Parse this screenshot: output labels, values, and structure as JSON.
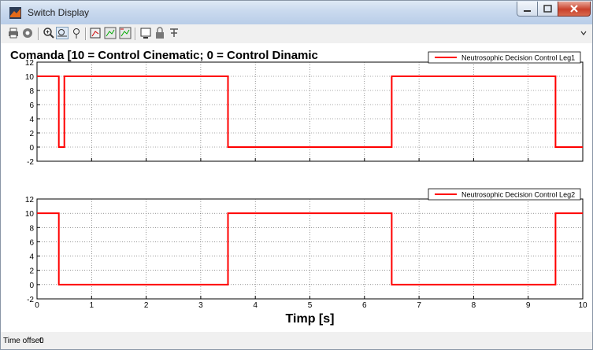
{
  "window": {
    "title": "Switch Display"
  },
  "toolbar": {
    "buttons": [
      "print-icon",
      "parameters-icon",
      "zoom-in-icon",
      "zoom-x-icon",
      "zoom-y-icon",
      "autoscale-icon",
      "save-axes-icon",
      "restore-axes-icon",
      "floating-scope-icon",
      "lock-icon",
      "signal-selection-icon"
    ]
  },
  "status": {
    "label": "Time offset:",
    "value": "0"
  },
  "chart_data": [
    {
      "type": "line",
      "title": "Comanda  [10 = Control Cinematic; 0 = Control Dinamic",
      "xlabel": "",
      "ylabel": "",
      "xlim": [
        0,
        10
      ],
      "ylim": [
        -2,
        12
      ],
      "xticks": [],
      "yticks": [
        "-2",
        "0",
        "2",
        "4",
        "6",
        "8",
        "10",
        "12"
      ],
      "grid": true,
      "legend_position": "top-right",
      "series": [
        {
          "name": "Neutrosophic Decision Control Leg1",
          "color": "#ff0000",
          "x": [
            0,
            0.4,
            0.4,
            0.5,
            0.5,
            3.5,
            3.5,
            6.5,
            6.5,
            9.5,
            9.5,
            10
          ],
          "y": [
            10,
            10,
            0,
            0,
            10,
            10,
            0,
            0,
            10,
            10,
            0,
            0
          ]
        }
      ]
    },
    {
      "type": "line",
      "title": "",
      "xlabel": "Timp [s]",
      "ylabel": "",
      "xlim": [
        0,
        10
      ],
      "ylim": [
        -2,
        12
      ],
      "xticks": [
        "0",
        "1",
        "2",
        "3",
        "4",
        "5",
        "6",
        "7",
        "8",
        "9",
        "10"
      ],
      "yticks": [
        "-2",
        "0",
        "2",
        "4",
        "6",
        "8",
        "10",
        "12"
      ],
      "grid": true,
      "legend_position": "top-right",
      "series": [
        {
          "name": "Neutrosophic Decision Control Leg2",
          "color": "#ff0000",
          "x": [
            0,
            0.4,
            0.4,
            3.5,
            3.5,
            6.5,
            6.5,
            9.5,
            9.5,
            10
          ],
          "y": [
            10,
            10,
            0,
            0,
            10,
            10,
            0,
            0,
            10,
            10
          ]
        }
      ]
    }
  ]
}
